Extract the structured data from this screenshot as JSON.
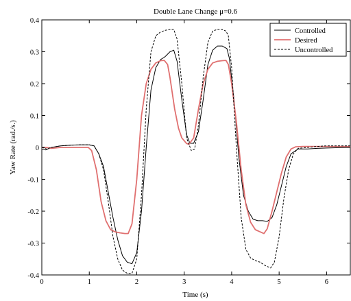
{
  "chart_data": {
    "type": "line",
    "title": "Double Lane Change    μ=0.6",
    "xlabel": "Time (s)",
    "ylabel": "Yaw Rate (rad./s.)",
    "xlim": [
      0,
      6.5
    ],
    "ylim": [
      -0.4,
      0.4
    ],
    "x_ticks": [
      0,
      1,
      2,
      3,
      4,
      5,
      6
    ],
    "y_ticks": [
      -0.4,
      -0.3,
      -0.2,
      -0.1,
      0,
      0.1,
      0.2,
      0.3,
      0.4
    ],
    "x_tick_labels": [
      "0",
      "1",
      "2",
      "3",
      "4",
      "5",
      "6"
    ],
    "y_tick_labels": [
      "-0.4",
      "-0.3",
      "-0.2",
      "-0.1",
      "0",
      "0.1",
      "0.2",
      "0.3",
      "0.4"
    ],
    "grid": false,
    "legend_position": "top-right",
    "series": [
      {
        "name": "Controlled",
        "color": "#000000",
        "style": "solid",
        "points": [
          [
            0,
            -0.005
          ],
          [
            0.08,
            -0.008
          ],
          [
            0.2,
            0.0
          ],
          [
            0.4,
            0.005
          ],
          [
            0.6,
            0.007
          ],
          [
            0.8,
            0.008
          ],
          [
            1.0,
            0.008
          ],
          [
            1.1,
            0.005
          ],
          [
            1.2,
            -0.02
          ],
          [
            1.3,
            -0.06
          ],
          [
            1.4,
            -0.14
          ],
          [
            1.5,
            -0.22
          ],
          [
            1.6,
            -0.29
          ],
          [
            1.7,
            -0.34
          ],
          [
            1.8,
            -0.36
          ],
          [
            1.9,
            -0.365
          ],
          [
            2.0,
            -0.33
          ],
          [
            2.1,
            -0.2
          ],
          [
            2.2,
            0.0
          ],
          [
            2.3,
            0.18
          ],
          [
            2.4,
            0.25
          ],
          [
            2.5,
            0.275
          ],
          [
            2.6,
            0.285
          ],
          [
            2.7,
            0.3
          ],
          [
            2.78,
            0.305
          ],
          [
            2.85,
            0.27
          ],
          [
            2.95,
            0.15
          ],
          [
            3.05,
            0.04
          ],
          [
            3.12,
            0.013
          ],
          [
            3.2,
            0.013
          ],
          [
            3.3,
            0.05
          ],
          [
            3.4,
            0.15
          ],
          [
            3.5,
            0.26
          ],
          [
            3.6,
            0.305
          ],
          [
            3.7,
            0.318
          ],
          [
            3.8,
            0.318
          ],
          [
            3.9,
            0.31
          ],
          [
            3.95,
            0.28
          ],
          [
            4.05,
            0.15
          ],
          [
            4.15,
            -0.03
          ],
          [
            4.25,
            -0.15
          ],
          [
            4.35,
            -0.2
          ],
          [
            4.45,
            -0.225
          ],
          [
            4.55,
            -0.23
          ],
          [
            4.65,
            -0.23
          ],
          [
            4.75,
            -0.232
          ],
          [
            4.85,
            -0.22
          ],
          [
            4.95,
            -0.18
          ],
          [
            5.05,
            -0.12
          ],
          [
            5.15,
            -0.06
          ],
          [
            5.25,
            -0.02
          ],
          [
            5.4,
            -0.005
          ],
          [
            5.6,
            -0.005
          ],
          [
            5.8,
            -0.003
          ],
          [
            6.0,
            -0.002
          ],
          [
            6.2,
            -0.001
          ],
          [
            6.5,
            0.0
          ]
        ]
      },
      {
        "name": "Desired",
        "color": "#e07070",
        "style": "solid",
        "points": [
          [
            0,
            0.0
          ],
          [
            0.1,
            0.0
          ],
          [
            0.2,
            -0.003
          ],
          [
            0.4,
            0.0
          ],
          [
            0.6,
            0.0
          ],
          [
            0.8,
            0.0
          ],
          [
            0.98,
            0.0
          ],
          [
            1.05,
            -0.01
          ],
          [
            1.15,
            -0.07
          ],
          [
            1.25,
            -0.17
          ],
          [
            1.35,
            -0.23
          ],
          [
            1.45,
            -0.258
          ],
          [
            1.55,
            -0.265
          ],
          [
            1.65,
            -0.268
          ],
          [
            1.75,
            -0.27
          ],
          [
            1.82,
            -0.27
          ],
          [
            1.9,
            -0.24
          ],
          [
            2.0,
            -0.1
          ],
          [
            2.1,
            0.1
          ],
          [
            2.2,
            0.2
          ],
          [
            2.3,
            0.245
          ],
          [
            2.4,
            0.265
          ],
          [
            2.5,
            0.272
          ],
          [
            2.58,
            0.273
          ],
          [
            2.65,
            0.26
          ],
          [
            2.7,
            0.22
          ],
          [
            2.8,
            0.12
          ],
          [
            2.88,
            0.06
          ],
          [
            2.95,
            0.03
          ],
          [
            3.05,
            0.012
          ],
          [
            3.1,
            0.01
          ],
          [
            3.2,
            0.03
          ],
          [
            3.3,
            0.12
          ],
          [
            3.4,
            0.2
          ],
          [
            3.5,
            0.245
          ],
          [
            3.6,
            0.265
          ],
          [
            3.7,
            0.27
          ],
          [
            3.8,
            0.272
          ],
          [
            3.88,
            0.273
          ],
          [
            3.93,
            0.26
          ],
          [
            4.0,
            0.2
          ],
          [
            4.1,
            0.08
          ],
          [
            4.2,
            -0.07
          ],
          [
            4.3,
            -0.18
          ],
          [
            4.4,
            -0.235
          ],
          [
            4.5,
            -0.258
          ],
          [
            4.6,
            -0.265
          ],
          [
            4.68,
            -0.27
          ],
          [
            4.75,
            -0.255
          ],
          [
            4.85,
            -0.2
          ],
          [
            4.95,
            -0.14
          ],
          [
            5.05,
            -0.08
          ],
          [
            5.15,
            -0.03
          ],
          [
            5.25,
            -0.005
          ],
          [
            5.35,
            0.002
          ],
          [
            5.5,
            0.003
          ],
          [
            5.8,
            0.003
          ],
          [
            6.1,
            0.003
          ],
          [
            6.5,
            0.003
          ]
        ]
      },
      {
        "name": "Uncontrolled",
        "color": "#000000",
        "style": "dashed",
        "points": [
          [
            0,
            0.0
          ],
          [
            0.1,
            -0.005
          ],
          [
            0.2,
            0.0
          ],
          [
            0.4,
            0.005
          ],
          [
            0.6,
            0.007
          ],
          [
            0.8,
            0.008
          ],
          [
            1.0,
            0.008
          ],
          [
            1.1,
            0.005
          ],
          [
            1.2,
            -0.02
          ],
          [
            1.3,
            -0.07
          ],
          [
            1.4,
            -0.17
          ],
          [
            1.5,
            -0.28
          ],
          [
            1.6,
            -0.35
          ],
          [
            1.7,
            -0.385
          ],
          [
            1.8,
            -0.395
          ],
          [
            1.9,
            -0.395
          ],
          [
            2.0,
            -0.35
          ],
          [
            2.1,
            -0.15
          ],
          [
            2.2,
            0.12
          ],
          [
            2.3,
            0.3
          ],
          [
            2.4,
            0.35
          ],
          [
            2.5,
            0.362
          ],
          [
            2.6,
            0.367
          ],
          [
            2.7,
            0.37
          ],
          [
            2.78,
            0.37
          ],
          [
            2.85,
            0.34
          ],
          [
            2.95,
            0.2
          ],
          [
            3.05,
            0.03
          ],
          [
            3.15,
            -0.01
          ],
          [
            3.22,
            -0.005
          ],
          [
            3.3,
            0.07
          ],
          [
            3.4,
            0.22
          ],
          [
            3.5,
            0.33
          ],
          [
            3.6,
            0.365
          ],
          [
            3.7,
            0.37
          ],
          [
            3.8,
            0.37
          ],
          [
            3.88,
            0.365
          ],
          [
            3.93,
            0.35
          ],
          [
            4.0,
            0.25
          ],
          [
            4.1,
            0.0
          ],
          [
            4.2,
            -0.22
          ],
          [
            4.3,
            -0.32
          ],
          [
            4.4,
            -0.347
          ],
          [
            4.5,
            -0.355
          ],
          [
            4.6,
            -0.36
          ],
          [
            4.7,
            -0.37
          ],
          [
            4.82,
            -0.378
          ],
          [
            4.9,
            -0.36
          ],
          [
            5.0,
            -0.28
          ],
          [
            5.1,
            -0.16
          ],
          [
            5.2,
            -0.07
          ],
          [
            5.3,
            -0.02
          ],
          [
            5.4,
            -0.003
          ],
          [
            5.6,
            0.0
          ],
          [
            5.8,
            0.003
          ],
          [
            6.0,
            0.005
          ],
          [
            6.2,
            0.005
          ],
          [
            6.5,
            0.005
          ]
        ]
      }
    ]
  }
}
